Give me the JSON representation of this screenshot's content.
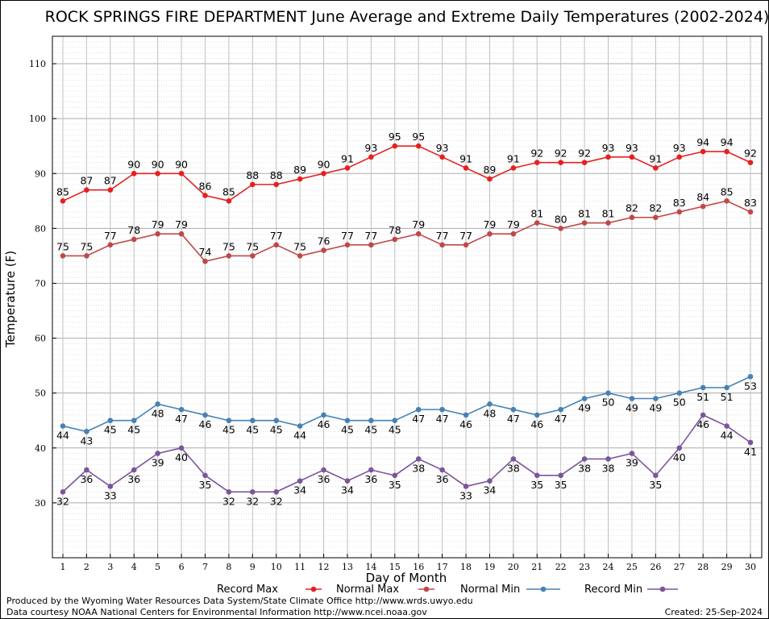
{
  "chart_data": {
    "type": "line",
    "title": "ROCK SPRINGS FIRE DEPARTMENT June Average and Extreme Daily Temperatures (2002-2024)",
    "xlabel": "Day of Month",
    "ylabel": "Temperature (F)",
    "xlim": [
      1,
      30
    ],
    "ylim": [
      20,
      115
    ],
    "y_ticks": [
      30,
      40,
      50,
      60,
      70,
      80,
      90,
      100,
      110
    ],
    "grid": true,
    "legend_position": "bottom",
    "x": [
      1,
      2,
      3,
      4,
      5,
      6,
      7,
      8,
      9,
      10,
      11,
      12,
      13,
      14,
      15,
      16,
      17,
      18,
      19,
      20,
      21,
      22,
      23,
      24,
      25,
      26,
      27,
      28,
      29,
      30
    ],
    "series": [
      {
        "name": "Record Max",
        "color": "#e52020",
        "label_position": "above",
        "values": [
          85,
          87,
          87,
          90,
          90,
          90,
          86,
          85,
          88,
          88,
          89,
          90,
          91,
          93,
          95,
          95,
          93,
          91,
          89,
          91,
          92,
          92,
          92,
          93,
          93,
          91,
          93,
          94,
          94,
          92
        ]
      },
      {
        "name": "Normal Max",
        "color": "#c04848",
        "label_position": "above",
        "values": [
          75,
          75,
          77,
          78,
          79,
          79,
          74,
          75,
          75,
          77,
          75,
          76,
          77,
          77,
          78,
          79,
          77,
          77,
          79,
          79,
          81,
          80,
          81,
          81,
          82,
          82,
          83,
          84,
          85,
          83
        ]
      },
      {
        "name": "Normal Min",
        "color": "#4682b4",
        "label_position": "below",
        "values": [
          44,
          43,
          45,
          45,
          48,
          47,
          46,
          45,
          45,
          45,
          44,
          46,
          45,
          45,
          45,
          47,
          47,
          46,
          48,
          47,
          46,
          47,
          49,
          50,
          49,
          49,
          50,
          51,
          51,
          53
        ]
      },
      {
        "name": "Record Min",
        "color": "#7b559c",
        "label_position": "below",
        "values": [
          32,
          36,
          33,
          36,
          39,
          40,
          35,
          32,
          32,
          32,
          34,
          36,
          34,
          36,
          35,
          38,
          36,
          33,
          34,
          38,
          35,
          35,
          38,
          38,
          39,
          35,
          40,
          46,
          44,
          41
        ]
      }
    ]
  },
  "footer": {
    "produced_by": "Produced by the Wyoming Water Resources Data System/State Climate Office http://www.wrds.uwyo.edu",
    "courtesy": "Data courtesy NOAA National Centers for Environmental Information http://www.ncei.noaa.gov",
    "created": "Created: 25-Sep-2024"
  }
}
